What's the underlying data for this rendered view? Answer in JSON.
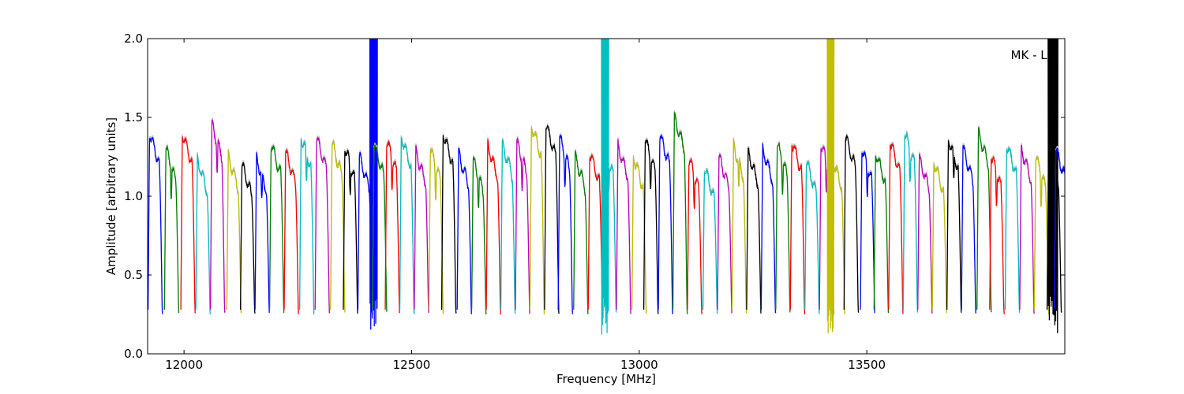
{
  "chart_data": {
    "type": "line",
    "title": "",
    "annotation": "MK - LL",
    "xlabel": "Frequency [MHz]",
    "ylabel": "Amplitude [arbitrary units]",
    "xlim": [
      11920,
      13935
    ],
    "ylim": [
      0,
      2.0
    ],
    "xticks": [
      12000,
      12500,
      13000,
      13500
    ],
    "yticks": [
      0.0,
      0.5,
      1.0,
      1.5,
      2.0
    ],
    "x_tick_labels": [
      "12000",
      "12500",
      "13000",
      "13500"
    ],
    "y_tick_labels": [
      "0.0",
      "0.5",
      "1.0",
      "1.5",
      "2.0"
    ],
    "grid": false,
    "legend": "none",
    "series_colors": [
      "#0000ff",
      "#008000",
      "#ff0000",
      "#00bfbf",
      "#bf00bf",
      "#bfbf00",
      "#000000"
    ],
    "shadow_color": "#bbbbbb",
    "channel_width": 32,
    "channels": [
      {
        "start": 11921,
        "peak": 1.4,
        "c": 0
      },
      {
        "start": 11957,
        "peak": 1.3,
        "c": 1
      },
      {
        "start": 11993,
        "peak": 1.4,
        "c": 2
      },
      {
        "start": 12026,
        "peak": 1.23,
        "c": 3
      },
      {
        "start": 12058,
        "peak": 1.45,
        "c": 4
      },
      {
        "start": 12094,
        "peak": 1.25,
        "c": 5
      },
      {
        "start": 12124,
        "peak": 1.2,
        "c": 6
      },
      {
        "start": 12156,
        "peak": 1.24,
        "c": 0
      },
      {
        "start": 12188,
        "peak": 1.33,
        "c": 1
      },
      {
        "start": 12220,
        "peak": 1.28,
        "c": 2
      },
      {
        "start": 12254,
        "peak": 1.38,
        "c": 3
      },
      {
        "start": 12288,
        "peak": 1.37,
        "c": 4
      },
      {
        "start": 12322,
        "peak": 1.33,
        "c": 5
      },
      {
        "start": 12350,
        "peak": 1.31,
        "c": 6
      },
      {
        "start": 12382,
        "peak": 1.25,
        "c": 0,
        "spike": [
          12408,
          12425
        ]
      },
      {
        "start": 12414,
        "peak": 1.33,
        "c": 1
      },
      {
        "start": 12442,
        "peak": 1.35,
        "c": 2
      },
      {
        "start": 12474,
        "peak": 1.38,
        "c": 3
      },
      {
        "start": 12506,
        "peak": 1.28,
        "c": 4
      },
      {
        "start": 12538,
        "peak": 1.3,
        "c": 5
      },
      {
        "start": 12566,
        "peak": 1.4,
        "c": 6
      },
      {
        "start": 12600,
        "peak": 1.27,
        "c": 0
      },
      {
        "start": 12632,
        "peak": 1.23,
        "c": 1
      },
      {
        "start": 12664,
        "peak": 1.32,
        "c": 2
      },
      {
        "start": 12696,
        "peak": 1.33,
        "c": 3
      },
      {
        "start": 12728,
        "peak": 1.34,
        "c": 4
      },
      {
        "start": 12760,
        "peak": 1.45,
        "c": 5
      },
      {
        "start": 12792,
        "peak": 1.45,
        "c": 6
      },
      {
        "start": 12822,
        "peak": 1.37,
        "c": 0
      },
      {
        "start": 12856,
        "peak": 1.25,
        "c": 1
      },
      {
        "start": 12888,
        "peak": 1.28,
        "c": 2
      },
      {
        "start": 12918,
        "peak": 1.33,
        "c": 3,
        "spike": [
          12917,
          12933
        ]
      },
      {
        "start": 12950,
        "peak": 1.32,
        "c": 4
      },
      {
        "start": 12984,
        "peak": 1.25,
        "c": 5
      },
      {
        "start": 13010,
        "peak": 1.36,
        "c": 6
      },
      {
        "start": 13042,
        "peak": 1.39,
        "c": 0
      },
      {
        "start": 13074,
        "peak": 1.5,
        "c": 1
      },
      {
        "start": 13106,
        "peak": 1.24,
        "c": 2
      },
      {
        "start": 13140,
        "peak": 1.18,
        "c": 3
      },
      {
        "start": 13172,
        "peak": 1.25,
        "c": 4
      },
      {
        "start": 13204,
        "peak": 1.32,
        "c": 5
      },
      {
        "start": 13236,
        "peak": 1.28,
        "c": 6
      },
      {
        "start": 13268,
        "peak": 1.3,
        "c": 0
      },
      {
        "start": 13300,
        "peak": 1.33,
        "c": 1
      },
      {
        "start": 13332,
        "peak": 1.35,
        "c": 2
      },
      {
        "start": 13364,
        "peak": 1.22,
        "c": 3
      },
      {
        "start": 13396,
        "peak": 1.33,
        "c": 4
      },
      {
        "start": 13420,
        "peak": 1.25,
        "c": 5,
        "spike": [
          13413,
          13428
        ]
      },
      {
        "start": 13450,
        "peak": 1.38,
        "c": 6
      },
      {
        "start": 13486,
        "peak": 1.3,
        "c": 0
      },
      {
        "start": 13516,
        "peak": 1.28,
        "c": 1
      },
      {
        "start": 13548,
        "peak": 1.35,
        "c": 2
      },
      {
        "start": 13580,
        "peak": 1.4,
        "c": 3
      },
      {
        "start": 13612,
        "peak": 1.24,
        "c": 4
      },
      {
        "start": 13644,
        "peak": 1.22,
        "c": 5
      },
      {
        "start": 13676,
        "peak": 1.37,
        "c": 6
      },
      {
        "start": 13708,
        "peak": 1.3,
        "c": 0
      },
      {
        "start": 13742,
        "peak": 1.4,
        "c": 1
      },
      {
        "start": 13770,
        "peak": 1.26,
        "c": 2
      },
      {
        "start": 13804,
        "peak": 1.33,
        "c": 3
      },
      {
        "start": 13836,
        "peak": 1.3,
        "c": 4
      },
      {
        "start": 13868,
        "peak": 1.25,
        "c": 5
      },
      {
        "start": 13896,
        "peak": 1.28,
        "c": 6,
        "spike": [
          13898,
          13920
        ]
      },
      {
        "start": 13912,
        "peak": 1.3,
        "c": 0
      }
    ]
  }
}
